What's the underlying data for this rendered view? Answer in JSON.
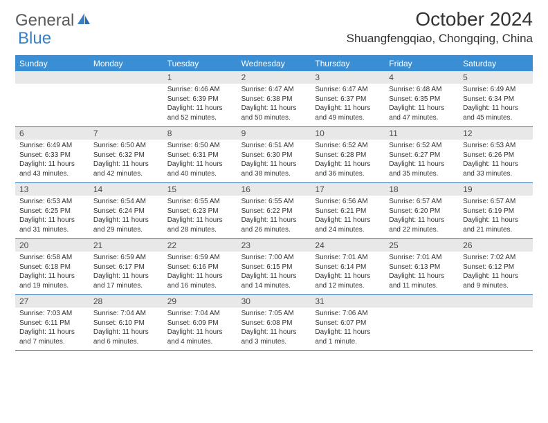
{
  "logo": {
    "part1": "General",
    "part2": "Blue"
  },
  "title": "October 2024",
  "location": "Shuangfengqiao, Chongqing, China",
  "colors": {
    "header_bg": "#3a8fd4",
    "border": "#2a6db0",
    "daynum_bg": "#e8e8e8",
    "text": "#333333",
    "logo_gray": "#5a5a5a",
    "logo_blue": "#3a7fc4"
  },
  "day_names": [
    "Sunday",
    "Monday",
    "Tuesday",
    "Wednesday",
    "Thursday",
    "Friday",
    "Saturday"
  ],
  "weeks": [
    [
      null,
      null,
      {
        "n": "1",
        "sr": "Sunrise: 6:46 AM",
        "ss": "Sunset: 6:39 PM",
        "dl": "Daylight: 11 hours and 52 minutes."
      },
      {
        "n": "2",
        "sr": "Sunrise: 6:47 AM",
        "ss": "Sunset: 6:38 PM",
        "dl": "Daylight: 11 hours and 50 minutes."
      },
      {
        "n": "3",
        "sr": "Sunrise: 6:47 AM",
        "ss": "Sunset: 6:37 PM",
        "dl": "Daylight: 11 hours and 49 minutes."
      },
      {
        "n": "4",
        "sr": "Sunrise: 6:48 AM",
        "ss": "Sunset: 6:35 PM",
        "dl": "Daylight: 11 hours and 47 minutes."
      },
      {
        "n": "5",
        "sr": "Sunrise: 6:49 AM",
        "ss": "Sunset: 6:34 PM",
        "dl": "Daylight: 11 hours and 45 minutes."
      }
    ],
    [
      {
        "n": "6",
        "sr": "Sunrise: 6:49 AM",
        "ss": "Sunset: 6:33 PM",
        "dl": "Daylight: 11 hours and 43 minutes."
      },
      {
        "n": "7",
        "sr": "Sunrise: 6:50 AM",
        "ss": "Sunset: 6:32 PM",
        "dl": "Daylight: 11 hours and 42 minutes."
      },
      {
        "n": "8",
        "sr": "Sunrise: 6:50 AM",
        "ss": "Sunset: 6:31 PM",
        "dl": "Daylight: 11 hours and 40 minutes."
      },
      {
        "n": "9",
        "sr": "Sunrise: 6:51 AM",
        "ss": "Sunset: 6:30 PM",
        "dl": "Daylight: 11 hours and 38 minutes."
      },
      {
        "n": "10",
        "sr": "Sunrise: 6:52 AM",
        "ss": "Sunset: 6:28 PM",
        "dl": "Daylight: 11 hours and 36 minutes."
      },
      {
        "n": "11",
        "sr": "Sunrise: 6:52 AM",
        "ss": "Sunset: 6:27 PM",
        "dl": "Daylight: 11 hours and 35 minutes."
      },
      {
        "n": "12",
        "sr": "Sunrise: 6:53 AM",
        "ss": "Sunset: 6:26 PM",
        "dl": "Daylight: 11 hours and 33 minutes."
      }
    ],
    [
      {
        "n": "13",
        "sr": "Sunrise: 6:53 AM",
        "ss": "Sunset: 6:25 PM",
        "dl": "Daylight: 11 hours and 31 minutes."
      },
      {
        "n": "14",
        "sr": "Sunrise: 6:54 AM",
        "ss": "Sunset: 6:24 PM",
        "dl": "Daylight: 11 hours and 29 minutes."
      },
      {
        "n": "15",
        "sr": "Sunrise: 6:55 AM",
        "ss": "Sunset: 6:23 PM",
        "dl": "Daylight: 11 hours and 28 minutes."
      },
      {
        "n": "16",
        "sr": "Sunrise: 6:55 AM",
        "ss": "Sunset: 6:22 PM",
        "dl": "Daylight: 11 hours and 26 minutes."
      },
      {
        "n": "17",
        "sr": "Sunrise: 6:56 AM",
        "ss": "Sunset: 6:21 PM",
        "dl": "Daylight: 11 hours and 24 minutes."
      },
      {
        "n": "18",
        "sr": "Sunrise: 6:57 AM",
        "ss": "Sunset: 6:20 PM",
        "dl": "Daylight: 11 hours and 22 minutes."
      },
      {
        "n": "19",
        "sr": "Sunrise: 6:57 AM",
        "ss": "Sunset: 6:19 PM",
        "dl": "Daylight: 11 hours and 21 minutes."
      }
    ],
    [
      {
        "n": "20",
        "sr": "Sunrise: 6:58 AM",
        "ss": "Sunset: 6:18 PM",
        "dl": "Daylight: 11 hours and 19 minutes."
      },
      {
        "n": "21",
        "sr": "Sunrise: 6:59 AM",
        "ss": "Sunset: 6:17 PM",
        "dl": "Daylight: 11 hours and 17 minutes."
      },
      {
        "n": "22",
        "sr": "Sunrise: 6:59 AM",
        "ss": "Sunset: 6:16 PM",
        "dl": "Daylight: 11 hours and 16 minutes."
      },
      {
        "n": "23",
        "sr": "Sunrise: 7:00 AM",
        "ss": "Sunset: 6:15 PM",
        "dl": "Daylight: 11 hours and 14 minutes."
      },
      {
        "n": "24",
        "sr": "Sunrise: 7:01 AM",
        "ss": "Sunset: 6:14 PM",
        "dl": "Daylight: 11 hours and 12 minutes."
      },
      {
        "n": "25",
        "sr": "Sunrise: 7:01 AM",
        "ss": "Sunset: 6:13 PM",
        "dl": "Daylight: 11 hours and 11 minutes."
      },
      {
        "n": "26",
        "sr": "Sunrise: 7:02 AM",
        "ss": "Sunset: 6:12 PM",
        "dl": "Daylight: 11 hours and 9 minutes."
      }
    ],
    [
      {
        "n": "27",
        "sr": "Sunrise: 7:03 AM",
        "ss": "Sunset: 6:11 PM",
        "dl": "Daylight: 11 hours and 7 minutes."
      },
      {
        "n": "28",
        "sr": "Sunrise: 7:04 AM",
        "ss": "Sunset: 6:10 PM",
        "dl": "Daylight: 11 hours and 6 minutes."
      },
      {
        "n": "29",
        "sr": "Sunrise: 7:04 AM",
        "ss": "Sunset: 6:09 PM",
        "dl": "Daylight: 11 hours and 4 minutes."
      },
      {
        "n": "30",
        "sr": "Sunrise: 7:05 AM",
        "ss": "Sunset: 6:08 PM",
        "dl": "Daylight: 11 hours and 3 minutes."
      },
      {
        "n": "31",
        "sr": "Sunrise: 7:06 AM",
        "ss": "Sunset: 6:07 PM",
        "dl": "Daylight: 11 hours and 1 minute."
      },
      null,
      null
    ]
  ]
}
